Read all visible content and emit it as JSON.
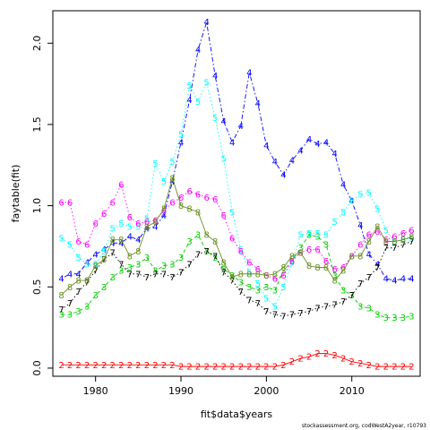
{
  "chart_data": {
    "type": "line",
    "xlabel": "fit$data$years",
    "ylabel": "faytable(fit)",
    "footnote": "stockassessment.org, codWestA2year, r10793",
    "xlim": [
      1975,
      2018
    ],
    "ylim": [
      -0.05,
      2.2
    ],
    "xticks": [
      1980,
      1990,
      2000,
      2010
    ],
    "yticks": [
      0.0,
      0.5,
      1.0,
      1.5,
      2.0
    ],
    "ytick_labels": [
      "0.0",
      "0.5",
      "1.0",
      "1.5",
      "2.0"
    ],
    "x": [
      1976,
      1977,
      1978,
      1979,
      1980,
      1981,
      1982,
      1983,
      1984,
      1985,
      1986,
      1987,
      1988,
      1989,
      1990,
      1991,
      1992,
      1993,
      1994,
      1995,
      1996,
      1997,
      1998,
      1999,
      2000,
      2001,
      2002,
      2003,
      2004,
      2005,
      2006,
      2007,
      2008,
      2009,
      2010,
      2011,
      2012,
      2013,
      2014,
      2015,
      2016,
      2017
    ],
    "series": [
      {
        "label": "2",
        "color": "#ff0000",
        "lty": "solid",
        "values": [
          0.02,
          0.02,
          0.02,
          0.02,
          0.02,
          0.02,
          0.02,
          0.02,
          0.02,
          0.02,
          0.02,
          0.02,
          0.02,
          0.02,
          0.01,
          0.01,
          0.01,
          0.01,
          0.01,
          0.01,
          0.01,
          0.01,
          0.01,
          0.01,
          0.01,
          0.01,
          0.02,
          0.04,
          0.06,
          0.07,
          0.09,
          0.09,
          0.08,
          0.06,
          0.04,
          0.03,
          0.02,
          0.01,
          0.01,
          0.01,
          0.01,
          0.01
        ]
      },
      {
        "label": "3",
        "color": "#00cd00",
        "lty": "dashed",
        "values": [
          0.33,
          0.33,
          0.35,
          0.38,
          0.45,
          0.5,
          0.56,
          0.6,
          0.62,
          0.64,
          0.68,
          0.6,
          0.63,
          0.64,
          0.68,
          0.78,
          0.82,
          0.72,
          0.68,
          0.61,
          0.57,
          0.53,
          0.5,
          0.48,
          0.5,
          0.48,
          0.6,
          0.66,
          0.74,
          0.82,
          0.81,
          0.76,
          0.57,
          0.48,
          0.45,
          0.38,
          0.37,
          0.33,
          0.31,
          0.31,
          0.31,
          0.32
        ]
      },
      {
        "label": "4",
        "color": "#0000ff",
        "lty": "dotdash",
        "values": [
          0.55,
          0.58,
          0.58,
          0.65,
          0.7,
          0.73,
          0.77,
          0.77,
          0.81,
          0.79,
          0.86,
          0.87,
          0.94,
          1.15,
          1.39,
          1.65,
          1.96,
          2.13,
          1.8,
          1.52,
          1.39,
          1.49,
          1.82,
          1.63,
          1.37,
          1.27,
          1.19,
          1.28,
          1.34,
          1.41,
          1.38,
          1.39,
          1.32,
          1.13,
          1.03,
          0.88,
          0.7,
          0.64,
          0.55,
          0.54,
          0.55,
          0.55
        ]
      },
      {
        "label": "5",
        "color": "#00ffff",
        "lty": "dotted",
        "values": [
          0.8,
          0.76,
          0.68,
          0.64,
          0.64,
          0.72,
          0.86,
          0.89,
          0.87,
          0.87,
          0.92,
          1.26,
          1.15,
          1.27,
          1.44,
          1.74,
          1.64,
          1.76,
          1.54,
          1.29,
          0.96,
          0.73,
          0.59,
          0.52,
          0.43,
          0.38,
          0.5,
          0.65,
          0.82,
          0.83,
          0.83,
          0.82,
          0.9,
          0.96,
          1.03,
          1.07,
          1.08,
          0.98,
          0.85,
          0.78,
          0.79,
          0.8
        ]
      },
      {
        "label": "6",
        "color": "#ff00ff",
        "lty": "dotted",
        "values": [
          1.02,
          1.02,
          0.78,
          0.76,
          0.89,
          0.95,
          1.02,
          1.13,
          0.93,
          0.89,
          0.9,
          0.91,
          0.97,
          1.02,
          1.05,
          1.09,
          1.07,
          1.05,
          1.04,
          0.94,
          0.8,
          0.72,
          0.65,
          0.61,
          0.57,
          0.55,
          0.57,
          0.66,
          0.71,
          0.73,
          0.73,
          0.66,
          0.61,
          0.62,
          0.69,
          0.76,
          0.82,
          0.84,
          0.79,
          0.81,
          0.83,
          0.85
        ]
      },
      {
        "label": "7",
        "color": "#000000",
        "lty": "dotted",
        "values": [
          0.36,
          0.4,
          0.47,
          0.53,
          0.6,
          0.67,
          0.71,
          0.64,
          0.58,
          0.58,
          0.56,
          0.58,
          0.58,
          0.56,
          0.59,
          0.64,
          0.7,
          0.72,
          0.69,
          0.59,
          0.54,
          0.47,
          0.42,
          0.4,
          0.35,
          0.33,
          0.32,
          0.33,
          0.34,
          0.35,
          0.37,
          0.38,
          0.39,
          0.41,
          0.45,
          0.52,
          0.56,
          0.62,
          0.74,
          0.74,
          0.76,
          0.78
        ]
      },
      {
        "label": "8",
        "color": "#6b8e23",
        "lty": "solid",
        "values": [
          0.45,
          0.5,
          0.54,
          0.54,
          0.63,
          0.67,
          0.79,
          0.79,
          0.69,
          0.72,
          0.87,
          0.9,
          0.98,
          1.17,
          1.0,
          0.98,
          0.96,
          0.82,
          0.78,
          0.65,
          0.56,
          0.58,
          0.58,
          0.58,
          0.57,
          0.58,
          0.62,
          0.69,
          0.71,
          0.63,
          0.62,
          0.62,
          0.54,
          0.6,
          0.69,
          0.69,
          0.78,
          0.87,
          0.78,
          0.78,
          0.79,
          0.81
        ]
      }
    ]
  }
}
